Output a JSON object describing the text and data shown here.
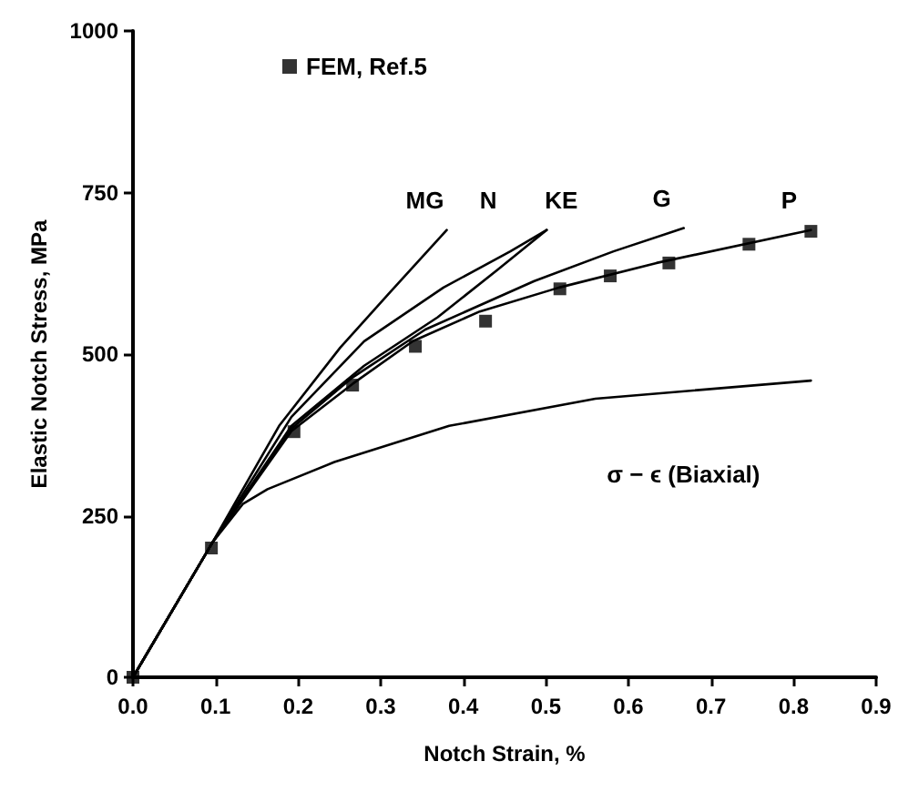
{
  "chart_data": {
    "type": "line",
    "xlabel": "Notch Strain, %",
    "ylabel": "Elastic Notch Stress, MPa",
    "xlim": [
      0,
      0.9
    ],
    "xticks": [
      {
        "value": 0,
        "label": "0.0"
      },
      0.1,
      0.2,
      0.3,
      0.4,
      0.5,
      0.6,
      0.7,
      0.8,
      0.9
    ],
    "ylim": [
      0,
      1000
    ],
    "yticks": [
      0,
      250,
      500,
      750,
      1000
    ],
    "grid": false,
    "legend": "top left",
    "line_style": "solid",
    "series": [
      {
        "type": "scatter",
        "name": "FEM, Ref.5",
        "color": "#000000",
        "marker": "square",
        "x": [
          0,
          0.095,
          0.195,
          0.266,
          0.342,
          0.427,
          0.517,
          0.578,
          0.649,
          0.746,
          0.821
        ],
        "values": [
          0,
          200,
          380,
          452,
          512,
          551,
          601,
          621,
          641,
          670,
          690
        ]
      },
      {
        "name": "MG",
        "color": "#000000",
        "marker": "none",
        "x": [
          0,
          0.096,
          0.177,
          0.251,
          0.31,
          0.38
        ],
        "values": [
          0,
          208,
          389,
          510,
          594,
          692
        ]
      },
      {
        "name": "N",
        "color": "#000000",
        "marker": "none",
        "x": [
          0,
          0.096,
          0.192,
          0.28,
          0.376,
          0.457,
          0.501
        ],
        "values": [
          0,
          208,
          403,
          520,
          603,
          659,
          692
        ]
      },
      {
        "name": "KE",
        "color": "#000000",
        "marker": "none",
        "x": [
          0,
          0.096,
          0.192,
          0.28,
          0.369,
          0.442,
          0.501
        ],
        "values": [
          0,
          208,
          389,
          482,
          557,
          631,
          692
        ]
      },
      {
        "name": "G",
        "color": "#000000",
        "marker": "none",
        "x": [
          0,
          0.096,
          0.192,
          0.266,
          0.354,
          0.486,
          0.582,
          0.667
        ],
        "values": [
          0,
          208,
          385,
          464,
          538,
          613,
          659,
          695
        ]
      },
      {
        "name": "P",
        "color": "#000000",
        "marker": "none",
        "x": [
          0,
          0.096,
          0.192,
          0.266,
          0.339,
          0.42,
          0.516,
          0.634,
          0.821
        ],
        "values": [
          0,
          208,
          381,
          454,
          520,
          566,
          603,
          641,
          692
        ]
      },
      {
        "name": "σ − ϵ (Biaxial)",
        "color": "#000000",
        "marker": "none",
        "x": [
          0,
          0.096,
          0.133,
          0.163,
          0.244,
          0.383,
          0.56,
          0.821
        ],
        "values": [
          0,
          208,
          268,
          291,
          333,
          389,
          431,
          459
        ]
      }
    ]
  }
}
